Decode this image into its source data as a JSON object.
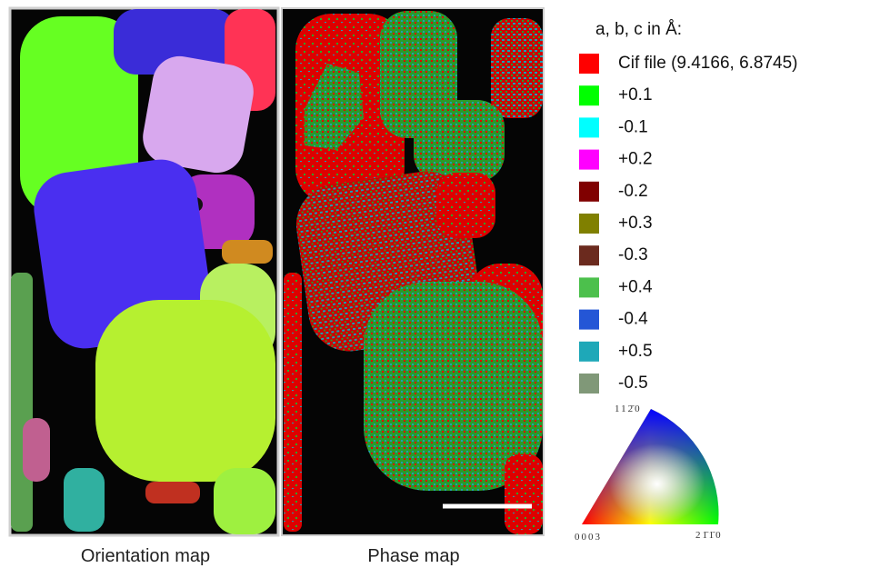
{
  "legend": {
    "title": "a, b, c in Å:",
    "items": [
      {
        "label": "Cif file (9.4166, 6.8745)",
        "color": "#ff0000"
      },
      {
        "label": "+0.1",
        "color": "#00ff00"
      },
      {
        "label": "-0.1",
        "color": "#00ffff"
      },
      {
        "label": "+0.2",
        "color": "#ff00ff"
      },
      {
        "label": "-0.2",
        "color": "#800000"
      },
      {
        "label": "+0.3",
        "color": "#808000"
      },
      {
        "label": "-0.3",
        "color": "#6b2a1e"
      },
      {
        "label": "+0.4",
        "color": "#4cc04c"
      },
      {
        "label": "-0.4",
        "color": "#2456d6"
      },
      {
        "label": "+0.5",
        "color": "#1ea8b8"
      },
      {
        "label": "-0.5",
        "color": "#809878"
      }
    ]
  },
  "captions": {
    "orientation_map": "Orientation map",
    "phase_map": "Phase map"
  },
  "ipf": {
    "top": "112̄0",
    "left": "0003",
    "right": "21̄1̄0"
  }
}
